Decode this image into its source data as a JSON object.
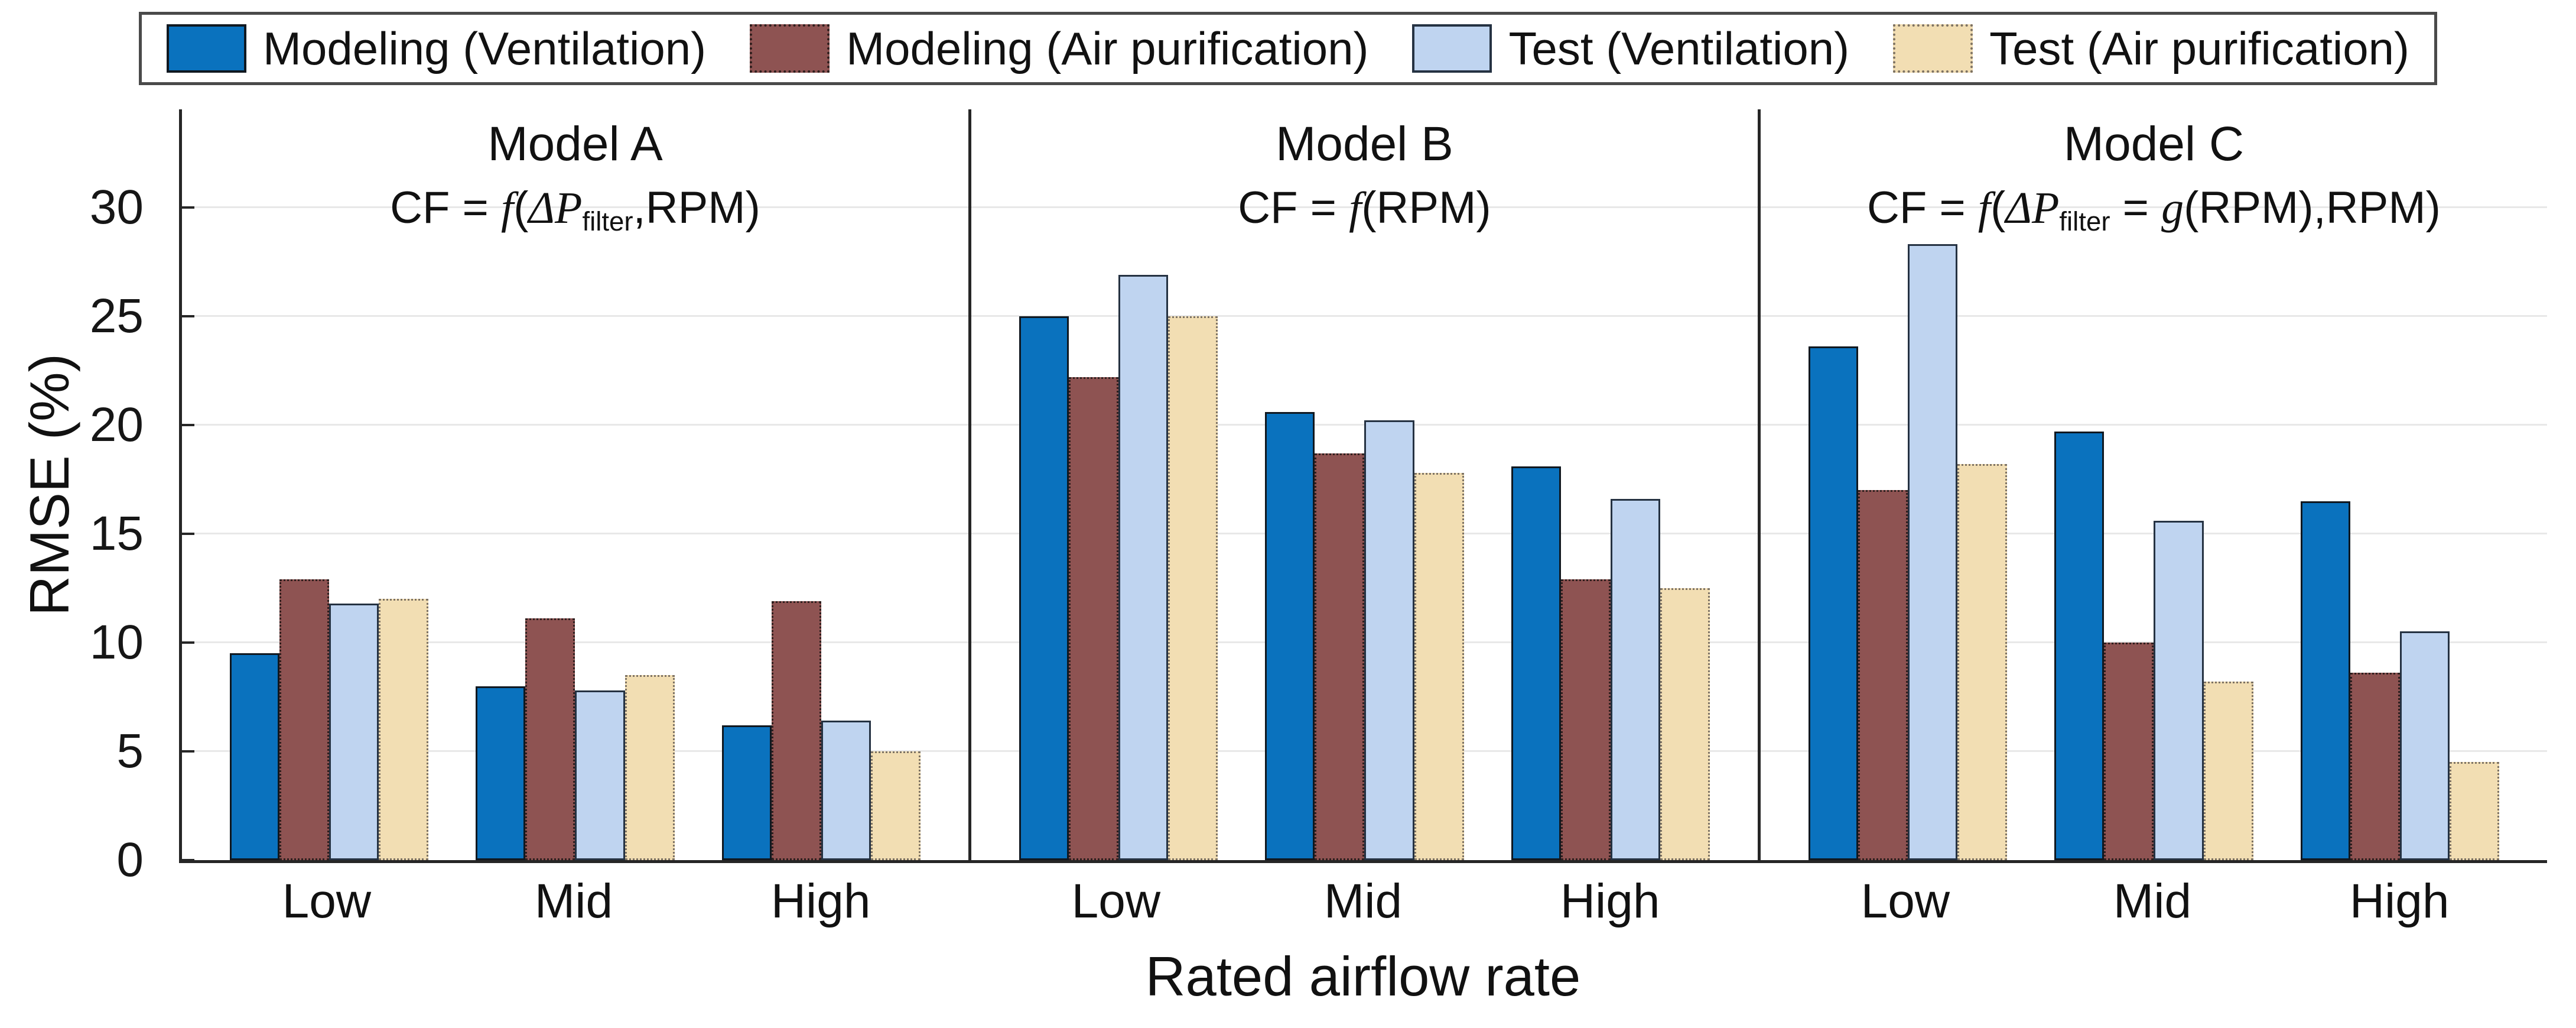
{
  "legend": {
    "items": [
      {
        "label": "Modeling (Ventilation)",
        "style": 0
      },
      {
        "label": "Modeling (Air purification)",
        "style": 1
      },
      {
        "label": "Test (Ventilation)",
        "style": 2
      },
      {
        "label": "Test (Air purification)",
        "style": 3
      }
    ]
  },
  "series_styles": [
    {
      "name": "Modeling (Ventilation)",
      "fill": "#0A72BE",
      "border": "#101820",
      "border_style": "solid"
    },
    {
      "name": "Modeling (Air purification)",
      "fill": "#8E5352",
      "border": "#2E1F1E",
      "border_style": "dotted"
    },
    {
      "name": "Test (Ventilation)",
      "fill": "#BFD4F0",
      "border": "#253242",
      "border_style": "solid"
    },
    {
      "name": "Test (Air purification)",
      "fill": "#F2DEB3",
      "border": "#7D7263",
      "border_style": "dotted"
    }
  ],
  "y_axis": {
    "label": "RMSE (%)",
    "ticks": [
      0,
      5,
      10,
      15,
      20,
      25,
      30
    ],
    "max": 34.5
  },
  "x_axis": {
    "label": "Rated airflow rate",
    "categories": [
      "Low",
      "Mid",
      "High"
    ]
  },
  "panels": [
    {
      "title": "Model A",
      "formula_parts": [
        [
          "CF = ",
          "rm"
        ],
        [
          "f",
          "mi"
        ],
        [
          "(",
          "rm"
        ],
        [
          "ΔP",
          "mi"
        ],
        [
          "filter",
          "msub"
        ],
        [
          ",RPM)",
          "rm"
        ]
      ]
    },
    {
      "title": "Model B",
      "formula_parts": [
        [
          "CF = ",
          "rm"
        ],
        [
          "f",
          "mi"
        ],
        [
          "(RPM)",
          "rm"
        ]
      ]
    },
    {
      "title": "Model C",
      "formula_parts": [
        [
          "CF = ",
          "rm"
        ],
        [
          "f",
          "mi"
        ],
        [
          "(",
          "rm"
        ],
        [
          "ΔP",
          "mi"
        ],
        [
          "filter",
          "msub"
        ],
        [
          " = ",
          "rm"
        ],
        [
          "g",
          "mi"
        ],
        [
          "(RPM),RPM)",
          "rm"
        ]
      ]
    }
  ],
  "chart_data": {
    "type": "bar",
    "title": "",
    "xlabel": "Rated airflow rate",
    "ylabel": "RMSE (%)",
    "ylim": [
      0,
      34.5
    ],
    "yticks": [
      0,
      5,
      10,
      15,
      20,
      25,
      30
    ],
    "grid": "horizontal",
    "legend_position": "top",
    "categories": [
      "Low",
      "Mid",
      "High"
    ],
    "panels": [
      {
        "name": "Model A",
        "formula": "CF = f(ΔP_filter,RPM)",
        "series": [
          {
            "name": "Modeling (Ventilation)",
            "values": [
              9.5,
              8.0,
              6.2
            ]
          },
          {
            "name": "Modeling (Air purification)",
            "values": [
              12.9,
              11.1,
              11.9
            ]
          },
          {
            "name": "Test (Ventilation)",
            "values": [
              11.8,
              7.8,
              6.4
            ]
          },
          {
            "name": "Test (Air purification)",
            "values": [
              12.0,
              8.5,
              5.0
            ]
          }
        ]
      },
      {
        "name": "Model B",
        "formula": "CF = f(RPM)",
        "series": [
          {
            "name": "Modeling (Ventilation)",
            "values": [
              25.0,
              20.6,
              18.1
            ]
          },
          {
            "name": "Modeling (Air purification)",
            "values": [
              22.2,
              18.7,
              12.9
            ]
          },
          {
            "name": "Test (Ventilation)",
            "values": [
              26.9,
              20.2,
              16.6
            ]
          },
          {
            "name": "Test (Air purification)",
            "values": [
              25.0,
              17.8,
              12.5
            ]
          }
        ]
      },
      {
        "name": "Model C",
        "formula": "CF = f(ΔP_filter = g(RPM),RPM)",
        "series": [
          {
            "name": "Modeling (Ventilation)",
            "values": [
              23.6,
              19.7,
              16.5
            ]
          },
          {
            "name": "Modeling (Air purification)",
            "values": [
              17.0,
              10.0,
              8.6
            ]
          },
          {
            "name": "Test (Ventilation)",
            "values": [
              28.3,
              15.6,
              10.5
            ]
          },
          {
            "name": "Test (Air purification)",
            "values": [
              18.2,
              8.2,
              4.5
            ]
          }
        ]
      }
    ],
    "group_center_fractions": [
      0.187,
      0.5,
      0.813
    ],
    "group_width_fraction": 0.253
  }
}
